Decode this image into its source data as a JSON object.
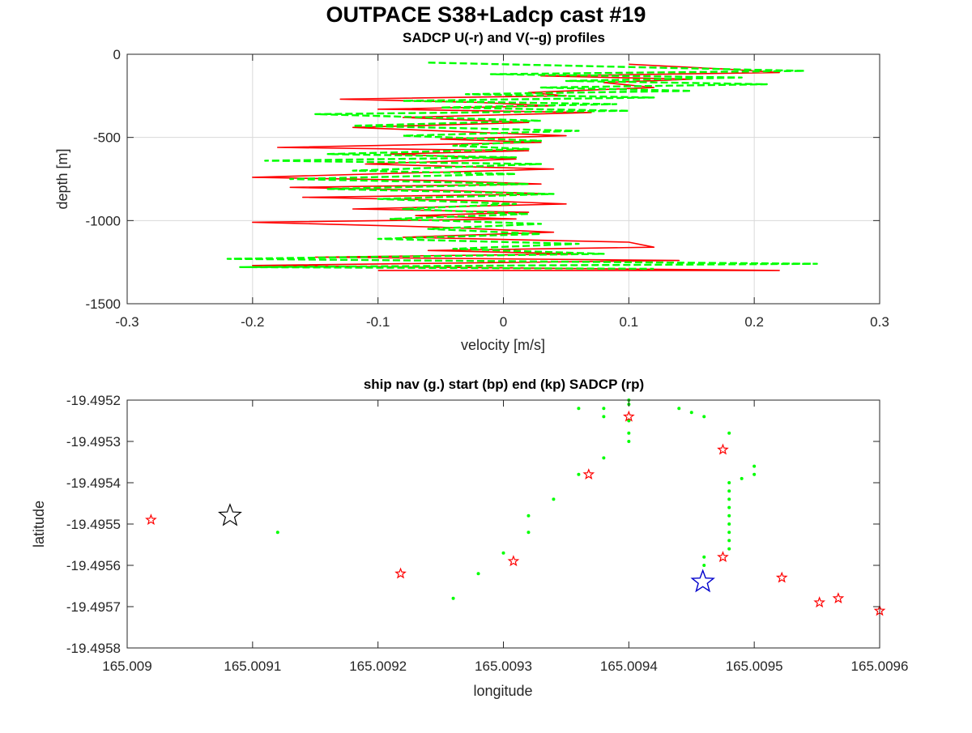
{
  "figure": {
    "title": "OUTPACE S38+Ladcp cast #19"
  },
  "chart_data": [
    {
      "type": "line",
      "title": "SADCP U(-r) and V(--g) profiles",
      "xlabel": "velocity [m/s]",
      "ylabel": "depth [m]",
      "xlim": [
        -0.3,
        0.3
      ],
      "ylim": [
        -1500,
        0
      ],
      "xticks": [
        -0.3,
        -0.2,
        -0.1,
        0,
        0.1,
        0.2,
        0.3
      ],
      "xtick_labels": [
        "-0.3",
        "-0.2",
        "-0.1",
        "0",
        "0.1",
        "0.2",
        "0.3"
      ],
      "yticks": [
        0,
        -500,
        -1000,
        -1500
      ],
      "ytick_labels": [
        "0",
        "-500",
        "-1000",
        "-1500"
      ],
      "grid": true,
      "series": [
        {
          "name": "U",
          "style": "solid",
          "color": "#ff0000",
          "points": [
            [
              0.1,
              -60
            ],
            [
              0.18,
              -90
            ],
            [
              0.22,
              -110
            ],
            [
              0.03,
              -130
            ],
            [
              0.15,
              -150
            ],
            [
              0.08,
              -170
            ],
            [
              0.12,
              -200
            ],
            [
              0.02,
              -230
            ],
            [
              0.05,
              -250
            ],
            [
              -0.13,
              -270
            ],
            [
              -0.02,
              -290
            ],
            [
              0.04,
              -310
            ],
            [
              -0.1,
              -330
            ],
            [
              0.07,
              -350
            ],
            [
              -0.08,
              -380
            ],
            [
              0.02,
              -410
            ],
            [
              -0.12,
              -440
            ],
            [
              -0.02,
              -470
            ],
            [
              0.05,
              -490
            ],
            [
              -0.05,
              -510
            ],
            [
              0.03,
              -530
            ],
            [
              -0.18,
              -560
            ],
            [
              0.02,
              -580
            ],
            [
              -0.09,
              -600
            ],
            [
              0.01,
              -630
            ],
            [
              -0.11,
              -660
            ],
            [
              0.04,
              -690
            ],
            [
              -0.2,
              -740
            ],
            [
              -0.05,
              -760
            ],
            [
              0.03,
              -780
            ],
            [
              -0.17,
              -800
            ],
            [
              -0.04,
              -820
            ],
            [
              0.04,
              -840
            ],
            [
              -0.16,
              -860
            ],
            [
              -0.02,
              -880
            ],
            [
              0.05,
              -900
            ],
            [
              -0.12,
              -930
            ],
            [
              0.02,
              -950
            ],
            [
              -0.07,
              -970
            ],
            [
              0.01,
              -990
            ],
            [
              -0.2,
              -1010
            ],
            [
              -0.05,
              -1040
            ],
            [
              0.04,
              -1070
            ],
            [
              -0.08,
              -1100
            ],
            [
              0.1,
              -1130
            ],
            [
              0.12,
              -1160
            ],
            [
              -0.06,
              -1180
            ],
            [
              0.06,
              -1200
            ],
            [
              -0.15,
              -1220
            ],
            [
              0.14,
              -1240
            ],
            [
              -0.2,
              -1270
            ],
            [
              0.22,
              -1300
            ],
            [
              -0.1,
              -1300
            ]
          ]
        },
        {
          "name": "V",
          "style": "dashed",
          "color": "#00ff00",
          "points": [
            [
              -0.06,
              -50
            ],
            [
              0.24,
              -100
            ],
            [
              -0.01,
              -120
            ],
            [
              0.19,
              -140
            ],
            [
              0.05,
              -160
            ],
            [
              0.21,
              -180
            ],
            [
              0.03,
              -200
            ],
            [
              0.15,
              -220
            ],
            [
              -0.03,
              -240
            ],
            [
              0.12,
              -260
            ],
            [
              -0.08,
              -280
            ],
            [
              0.09,
              -300
            ],
            [
              -0.05,
              -320
            ],
            [
              0.1,
              -340
            ],
            [
              -0.15,
              -360
            ],
            [
              0.03,
              -400
            ],
            [
              -0.12,
              -430
            ],
            [
              0.06,
              -460
            ],
            [
              -0.08,
              -490
            ],
            [
              0.03,
              -520
            ],
            [
              -0.04,
              -550
            ],
            [
              0.02,
              -570
            ],
            [
              -0.14,
              -600
            ],
            [
              0.01,
              -620
            ],
            [
              -0.19,
              -640
            ],
            [
              0.03,
              -660
            ],
            [
              -0.12,
              -700
            ],
            [
              0.01,
              -720
            ],
            [
              -0.17,
              -750
            ],
            [
              0.02,
              -780
            ],
            [
              -0.14,
              -810
            ],
            [
              0.04,
              -840
            ],
            [
              -0.1,
              -870
            ],
            [
              0.01,
              -900
            ],
            [
              -0.08,
              -930
            ],
            [
              0.02,
              -960
            ],
            [
              -0.09,
              -990
            ],
            [
              0.03,
              -1020
            ],
            [
              -0.06,
              -1050
            ],
            [
              0.03,
              -1080
            ],
            [
              -0.1,
              -1110
            ],
            [
              0.06,
              -1140
            ],
            [
              -0.04,
              -1170
            ],
            [
              0.08,
              -1200
            ],
            [
              -0.22,
              -1230
            ],
            [
              0.25,
              -1260
            ],
            [
              -0.21,
              -1280
            ],
            [
              0.12,
              -1290
            ]
          ]
        }
      ]
    },
    {
      "type": "scatter",
      "title": "ship nav (g.) start (bp) end (kp) SADCP (rp)",
      "xlabel": "longitude",
      "ylabel": "latitude",
      "xlim": [
        165.009,
        165.0096
      ],
      "ylim": [
        -19.4958,
        -19.4952
      ],
      "xticks": [
        165.009,
        165.0091,
        165.0092,
        165.0093,
        165.0094,
        165.0095,
        165.0096
      ],
      "xtick_labels": [
        "165.009",
        "165.0091",
        "165.0092",
        "165.0093",
        "165.0094",
        "165.0095",
        "165.0096"
      ],
      "yticks": [
        -19.4952,
        -19.4953,
        -19.4954,
        -19.4955,
        -19.4956,
        -19.4957,
        -19.4958
      ],
      "ytick_labels": [
        "-19.4952",
        "-19.4953",
        "-19.4954",
        "-19.4955",
        "-19.4956",
        "-19.4957",
        "-19.4958"
      ],
      "grid": false,
      "series": [
        {
          "name": "ship nav",
          "marker": "dot",
          "color": "#00ff00",
          "points": [
            [
              165.00912,
              -19.49552
            ],
            [
              165.00926,
              -19.49568
            ],
            [
              165.00928,
              -19.49562
            ],
            [
              165.0093,
              -19.49557
            ],
            [
              165.00932,
              -19.49552
            ],
            [
              165.00932,
              -19.49548
            ],
            [
              165.00934,
              -19.49544
            ],
            [
              165.00936,
              -19.49538
            ],
            [
              165.00938,
              -19.49534
            ],
            [
              165.0094,
              -19.4953
            ],
            [
              165.0094,
              -19.49528
            ],
            [
              165.0094,
              -19.49525
            ],
            [
              165.0094,
              -19.49521
            ],
            [
              165.0094,
              -19.4952
            ],
            [
              165.00936,
              -19.49522
            ],
            [
              165.00938,
              -19.49522
            ],
            [
              165.00938,
              -19.49524
            ],
            [
              165.00944,
              -19.49522
            ],
            [
              165.00945,
              -19.49523
            ],
            [
              165.00946,
              -19.49524
            ],
            [
              165.00948,
              -19.49528
            ],
            [
              165.0095,
              -19.49536
            ],
            [
              165.0095,
              -19.49538
            ],
            [
              165.00949,
              -19.49539
            ],
            [
              165.00948,
              -19.4954
            ],
            [
              165.00948,
              -19.49542
            ],
            [
              165.00948,
              -19.49544
            ],
            [
              165.00948,
              -19.49546
            ],
            [
              165.00948,
              -19.49548
            ],
            [
              165.00948,
              -19.4955
            ],
            [
              165.00948,
              -19.49552
            ],
            [
              165.00948,
              -19.49554
            ],
            [
              165.00948,
              -19.49556
            ],
            [
              165.00946,
              -19.49558
            ],
            [
              165.00946,
              -19.4956
            ]
          ]
        },
        {
          "name": "start",
          "marker": "star",
          "color": "#000000",
          "points": [
            [
              165.009082,
              -19.49548
            ]
          ]
        },
        {
          "name": "end",
          "marker": "star",
          "color": "#0000cc",
          "points": [
            [
              165.009459,
              -19.49564
            ]
          ]
        },
        {
          "name": "SADCP",
          "marker": "star",
          "color": "#ff0000",
          "points": [
            [
              165.009019,
              -19.49549
            ],
            [
              165.009218,
              -19.49562
            ],
            [
              165.009308,
              -19.49559
            ],
            [
              165.009368,
              -19.49538
            ],
            [
              165.0094,
              -19.49524
            ],
            [
              165.009475,
              -19.49532
            ],
            [
              165.009475,
              -19.49558
            ],
            [
              165.009522,
              -19.49563
            ],
            [
              165.009552,
              -19.49569
            ],
            [
              165.009567,
              -19.49568
            ],
            [
              165.0096,
              -19.49571
            ]
          ]
        }
      ]
    }
  ]
}
